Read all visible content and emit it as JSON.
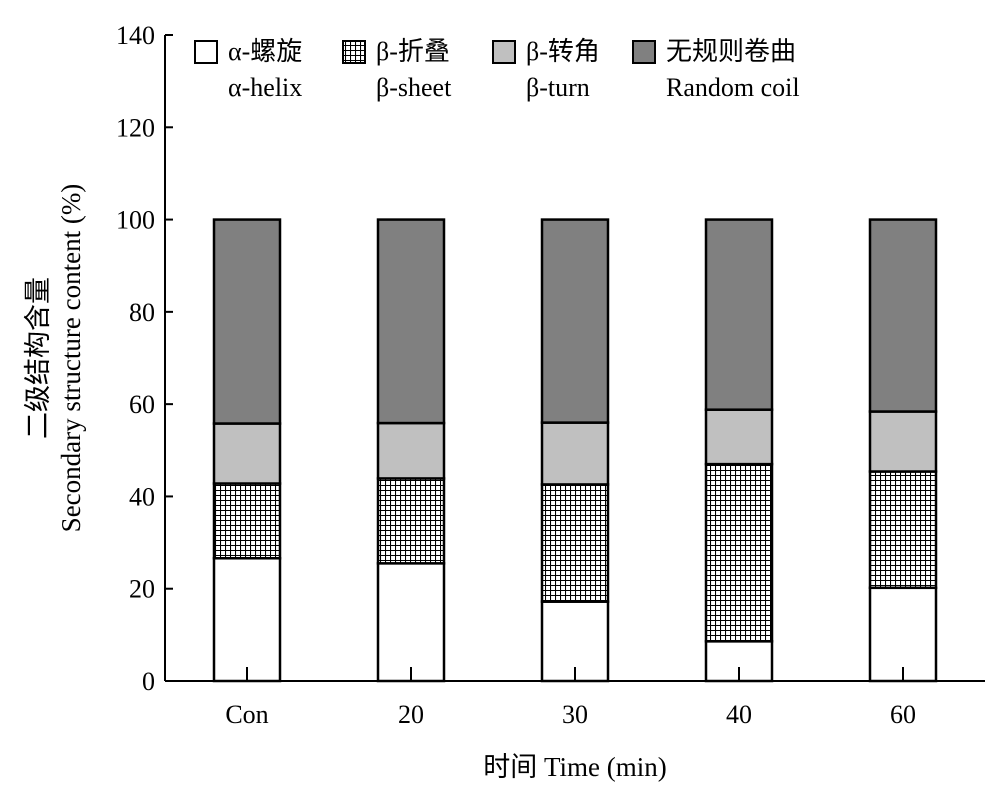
{
  "chart_data": {
    "type": "bar",
    "stacked": true,
    "categories": [
      "Con",
      "20",
      "30",
      "40",
      "60"
    ],
    "series": [
      {
        "name": "α-螺旋 α-helix",
        "name_cn": "α-螺旋",
        "name_en": "α-helix",
        "pattern": "white",
        "values": [
          26.6,
          25.5,
          17.2,
          8.6,
          20.2
        ]
      },
      {
        "name": "β-折叠 β-sheet",
        "name_cn": "β-折叠",
        "name_en": "β-sheet",
        "pattern": "crosshatch",
        "values": [
          16.2,
          18.4,
          25.4,
          38.4,
          25.2
        ]
      },
      {
        "name": "β-转角 β-turn",
        "name_cn": "β-转角",
        "name_en": "β-turn",
        "pattern": "light-gray",
        "values": [
          13.0,
          12.0,
          13.4,
          11.8,
          13.0
        ]
      },
      {
        "name": "无规则卷曲 Random coil",
        "name_cn": "无规则卷曲",
        "name_en": "Random coil",
        "pattern": "dark-gray",
        "values": [
          44.2,
          44.1,
          44.0,
          41.2,
          41.6
        ]
      }
    ],
    "xlabel": "时间 Time (min)",
    "ylabel_cn": "二级结构含量",
    "ylabel_en": "Secondary structure content (%)",
    "ylim": [
      0,
      140
    ],
    "yticks": [
      0,
      20,
      40,
      60,
      80,
      100,
      120,
      140
    ],
    "grid": false,
    "legend_position": "top"
  },
  "colors": {
    "white": "#ffffff",
    "light_gray": "#c0c0c0",
    "dark_gray": "#808080",
    "hatch_fill": "#ffffff",
    "hatch_line": "#000000",
    "axis": "#000000"
  }
}
